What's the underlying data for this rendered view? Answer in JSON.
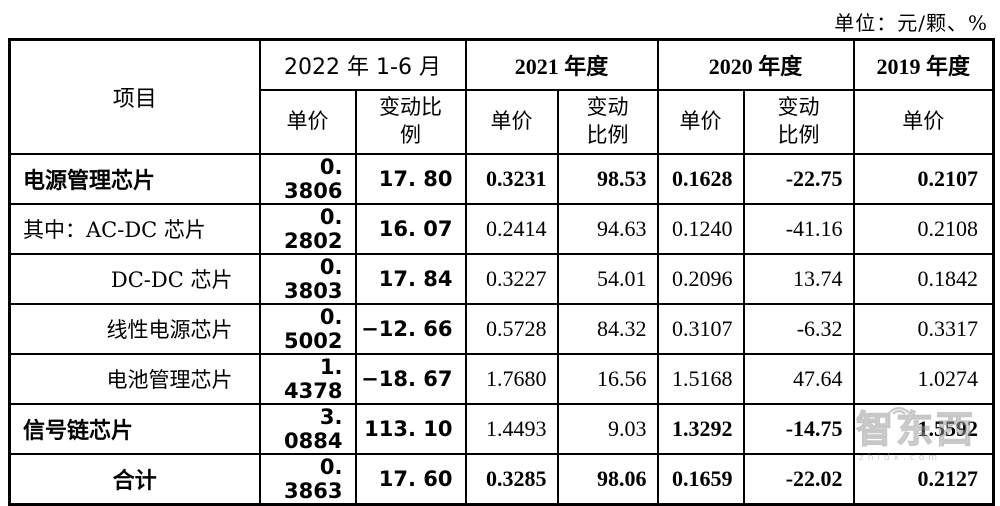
{
  "unit_note": "单位：元/颗、%",
  "watermark": {
    "text": "智东西",
    "subtext": "zhidx.com"
  },
  "table": {
    "header": {
      "item": "项目",
      "periods": [
        {
          "label": "2022 年 1-6 月",
          "sub": [
            "单价",
            "变动比\n例"
          ]
        },
        {
          "label": "2021 年度",
          "sub": [
            "单价",
            "变动\n比例"
          ]
        },
        {
          "label": "2020 年度",
          "sub": [
            "单价",
            "变动\n比例"
          ]
        },
        {
          "label": "2019 年度",
          "sub": [
            "单价"
          ]
        }
      ]
    },
    "rows": [
      {
        "label": "电源管理芯片",
        "label_class": "lbl-bold",
        "cells": [
          {
            "v": "0. 3806"
          },
          {
            "v": "17. 80"
          },
          {
            "v": "0.3231",
            "b": 1
          },
          {
            "v": "98.53",
            "b": 1
          },
          {
            "v": "0.1628",
            "b": 1
          },
          {
            "v": "-22.75",
            "b": 1
          },
          {
            "v": "0.2107",
            "b": 1
          }
        ]
      },
      {
        "label": "其中：AC-DC 芯片",
        "label_class": "",
        "cells": [
          {
            "v": "0. 2802"
          },
          {
            "v": "16. 07"
          },
          {
            "v": "0.2414"
          },
          {
            "v": "94.63"
          },
          {
            "v": "0.1240"
          },
          {
            "v": "-41.16"
          },
          {
            "v": "0.2108"
          }
        ]
      },
      {
        "label": "DC-DC 芯片",
        "label_class": "lbl-indent",
        "cells": [
          {
            "v": "0. 3803"
          },
          {
            "v": "17. 84"
          },
          {
            "v": "0.3227"
          },
          {
            "v": "54.01"
          },
          {
            "v": "0.2096"
          },
          {
            "v": "13.74"
          },
          {
            "v": "0.1842"
          }
        ]
      },
      {
        "label": "线性电源芯片",
        "label_class": "lbl-indent",
        "cells": [
          {
            "v": "0. 5002"
          },
          {
            "v": "−12. 66"
          },
          {
            "v": "0.5728"
          },
          {
            "v": "84.32"
          },
          {
            "v": "0.3107"
          },
          {
            "v": "-6.32"
          },
          {
            "v": "0.3317"
          }
        ]
      },
      {
        "label": "电池管理芯片",
        "label_class": "lbl-indent",
        "cells": [
          {
            "v": "1. 4378"
          },
          {
            "v": "−18. 67"
          },
          {
            "v": "1.7680"
          },
          {
            "v": "16.56"
          },
          {
            "v": "1.5168"
          },
          {
            "v": "47.64"
          },
          {
            "v": "1.0274"
          }
        ]
      },
      {
        "label": "信号链芯片",
        "label_class": "lbl-bold",
        "cells": [
          {
            "v": "3. 0884"
          },
          {
            "v": "113. 10"
          },
          {
            "v": "1.4493"
          },
          {
            "v": "9.03"
          },
          {
            "v": "1.3292",
            "b": 1
          },
          {
            "v": "-14.75",
            "b": 1
          },
          {
            "v": "1.5592",
            "b": 1
          }
        ]
      },
      {
        "label": "合计",
        "label_class": "lbl-bold lbl-center",
        "cells": [
          {
            "v": "0. 3863"
          },
          {
            "v": "17. 60"
          },
          {
            "v": "0.3285",
            "b": 1
          },
          {
            "v": "98.06",
            "b": 1
          },
          {
            "v": "0.1659",
            "b": 1
          },
          {
            "v": "-22.02",
            "b": 1
          },
          {
            "v": "0.2127",
            "b": 1
          }
        ]
      }
    ]
  }
}
